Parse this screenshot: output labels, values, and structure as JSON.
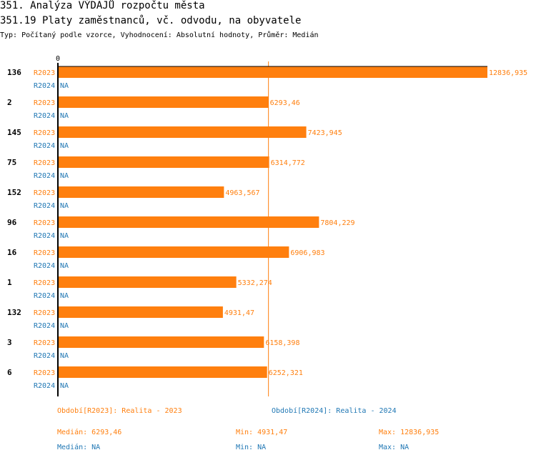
{
  "header": {
    "title": "351. Analýza VÝDAJŮ rozpočtu města",
    "subtitle": "351.19 Platy zaměstnanců, vč. odvodu, na obyvatele",
    "info": "Typ: Počítaný podle vzorce, Vyhodnocení: Absolutní hodnoty, Průměr: Medián"
  },
  "colors": {
    "r2023": "#ff7f0e",
    "r2024": "#1f77b4"
  },
  "chart_data": {
    "type": "bar",
    "orientation": "horizontal",
    "axis_zero_label": "0",
    "xlim": [
      0,
      12836.935
    ],
    "categories": [
      "136",
      "2",
      "145",
      "75",
      "152",
      "96",
      "16",
      "1",
      "132",
      "3",
      "6"
    ],
    "series": [
      {
        "name": "R2023",
        "values": [
          12836.935,
          6293.46,
          7423.945,
          6314.772,
          4963.567,
          7804.229,
          6906.983,
          5332.274,
          4931.47,
          6158.398,
          6252.321
        ],
        "labels": [
          "12836,935",
          "6293,46",
          "7423,945",
          "6314,772",
          "4963,567",
          "7804,229",
          "6906,983",
          "5332,274",
          "4931,47",
          "6158,398",
          "6252,321"
        ]
      },
      {
        "name": "R2024",
        "values": [
          null,
          null,
          null,
          null,
          null,
          null,
          null,
          null,
          null,
          null,
          null
        ],
        "na_label": "NA"
      }
    ],
    "median_line": 6293.46
  },
  "legend": {
    "r2023": "Období[R2023]: Realita - 2023",
    "r2024": "Období[R2024]: Realita - 2024",
    "r2023_median": "Medián: 6293,46",
    "r2023_min": "Min: 4931,47",
    "r2023_max": "Max: 12836,935",
    "r2024_median": "Medián: NA",
    "r2024_min": "Min: NA",
    "r2024_max": "Max: NA"
  }
}
